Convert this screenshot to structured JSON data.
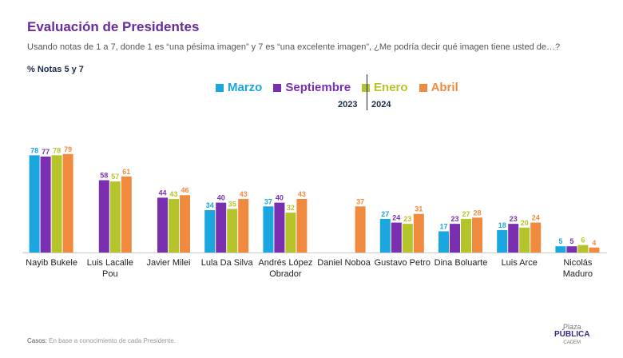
{
  "chart_data": {
    "type": "bar",
    "title": "Evaluación de Presidentes",
    "subtitle": "Usando notas de 1 a 7, donde 1 es “una pésima imagen” y 7 es “una excelente imagen”, ¿Me podría decir qué imagen tiene usted de…?",
    "measure": "% Notas 5 y 7",
    "years": [
      "2023",
      "2024"
    ],
    "categories": [
      "Nayib Bukele",
      "Luis Lacalle Pou",
      "Javier Milei",
      "Lula Da Silva",
      "Andrés López Obrador",
      "Daniel Noboa",
      "Gustavo Petro",
      "Dina Boluarte",
      "Luis Arce",
      "Nicolás Maduro"
    ],
    "series": [
      {
        "name": "Marzo",
        "color": "#1ba6df",
        "values": [
          78,
          null,
          null,
          34,
          37,
          null,
          27,
          17,
          18,
          5
        ]
      },
      {
        "name": "Septiembre",
        "color": "#7a2fb0",
        "values": [
          77,
          58,
          44,
          40,
          40,
          null,
          24,
          23,
          23,
          5
        ]
      },
      {
        "name": "Enero",
        "color": "#b5c42a",
        "values": [
          78,
          57,
          43,
          35,
          32,
          null,
          23,
          27,
          20,
          6
        ]
      },
      {
        "name": "Abril",
        "color": "#f08a3e",
        "values": [
          79,
          61,
          46,
          43,
          43,
          37,
          31,
          28,
          24,
          4
        ]
      }
    ],
    "footer": {
      "label": "Casos:",
      "text": "En base a conocimiento de cada Presidente."
    },
    "logo": {
      "top": "Plaza",
      "main": "PÚBLICA",
      "sub": "CADEM"
    }
  }
}
